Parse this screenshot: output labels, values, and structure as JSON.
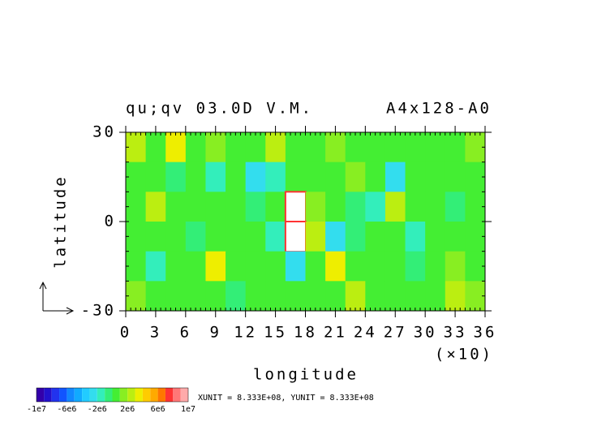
{
  "chart_data": {
    "type": "heatmap",
    "title": "qu;qv  03.0D V.M.",
    "subtitle": "A4x128-A0",
    "x_label": "longitude",
    "x_unit_note": "(×10)",
    "y_label": "latitude",
    "annotation": "XUNIT = 8.333E+08, YUNIT = 8.333E+08",
    "xlim": [
      0,
      36
    ],
    "xticks": [
      0,
      3,
      6,
      9,
      12,
      15,
      18,
      21,
      24,
      27,
      30,
      33,
      36
    ],
    "ylim": [
      -30,
      30
    ],
    "yticks": [
      -30,
      0,
      30
    ],
    "z": [
      [
        2000000,
        0,
        3000000,
        0,
        1000000,
        0,
        0,
        2000000,
        0,
        0,
        1000000,
        0,
        0,
        0,
        0,
        0,
        0,
        1000000
      ],
      [
        0,
        0,
        -1000000,
        0,
        -2000000,
        0,
        -3000000,
        -2000000,
        0,
        0,
        0,
        1000000,
        0,
        -3000000,
        0,
        0,
        0,
        0
      ],
      [
        0,
        2000000,
        0,
        0,
        0,
        0,
        -1000000,
        0,
        15000000,
        1000000,
        0,
        -1000000,
        -2000000,
        2000000,
        0,
        0,
        -1000000,
        0
      ],
      [
        0,
        0,
        0,
        -1000000,
        0,
        0,
        0,
        -2000000,
        15000000,
        2000000,
        -3000000,
        -1000000,
        0,
        0,
        -2000000,
        0,
        0,
        0
      ],
      [
        0,
        -2000000,
        0,
        0,
        3000000,
        0,
        0,
        0,
        -3000000,
        0,
        3000000,
        0,
        0,
        0,
        -1000000,
        0,
        1000000,
        0
      ],
      [
        1000000,
        0,
        0,
        0,
        0,
        -1000000,
        0,
        0,
        0,
        0,
        0,
        2000000,
        0,
        0,
        0,
        0,
        2000000,
        1000000
      ]
    ],
    "colorbar": {
      "lim": [
        -10000000,
        10000000
      ],
      "ticks": [
        {
          "value": -10000000,
          "label": "-1e7"
        },
        {
          "value": -6000000,
          "label": "-6e6"
        },
        {
          "value": -2000000,
          "label": "-2e6"
        },
        {
          "value": 2000000,
          "label": "2e6"
        },
        {
          "value": 6000000,
          "label": "6e6"
        },
        {
          "value": 10000000,
          "label": "1e7"
        }
      ],
      "colors": [
        "#3300aa",
        "#2211cc",
        "#2233ee",
        "#1155ff",
        "#1188ff",
        "#11aaff",
        "#22ccff",
        "#33ddee",
        "#33eebb",
        "#33ee77",
        "#44ee33",
        "#88ee22",
        "#bbee11",
        "#eeee00",
        "#ffcc00",
        "#ffaa00",
        "#ff7700",
        "#ff3333",
        "#ff7777",
        "#ffaaaa"
      ]
    }
  }
}
